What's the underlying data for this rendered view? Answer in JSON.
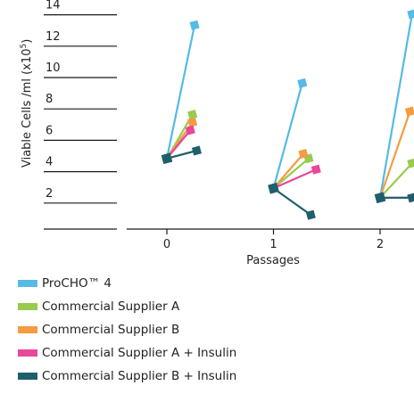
{
  "chart_data": {
    "type": "line",
    "ylabel": "Viable Cells /ml (x10",
    "ylabel_sup": "5",
    "ylabel_end": ")",
    "xlabel": "Passages",
    "y_ticks": [
      "14",
      "12",
      "10",
      "8",
      "6",
      "4",
      "2"
    ],
    "x_ticks": [
      "0",
      "1",
      "2"
    ],
    "ylim": [
      0,
      14
    ],
    "grid": false,
    "legend_position": "bottom",
    "series": [
      {
        "name": "ProCHO™ 4",
        "color": "#57b9e6",
        "segments": [
          {
            "from": [
              0,
              4.5
            ],
            "to": [
              0.26,
              13.0
            ]
          },
          {
            "from": [
              1,
              2.6
            ],
            "to": [
              1.27,
              9.3
            ]
          },
          {
            "from": [
              2,
              2.0
            ],
            "to": [
              2.3,
              13.7
            ]
          }
        ]
      },
      {
        "name": "Commercial Supplier A",
        "color": "#98cb4e",
        "segments": [
          {
            "from": [
              0,
              4.5
            ],
            "to": [
              0.24,
              7.3
            ]
          },
          {
            "from": [
              1,
              2.6
            ],
            "to": [
              1.33,
              4.5
            ]
          },
          {
            "from": [
              2,
              2.0
            ],
            "to": [
              2.3,
              4.2
            ]
          }
        ]
      },
      {
        "name": "Commercial Supplier B",
        "color": "#f39c42",
        "segments": [
          {
            "from": [
              0,
              4.5
            ],
            "to": [
              0.24,
              6.8
            ]
          },
          {
            "from": [
              1,
              2.6
            ],
            "to": [
              1.28,
              4.8
            ]
          },
          {
            "from": [
              2,
              2.0
            ],
            "to": [
              2.28,
              7.5
            ]
          }
        ]
      },
      {
        "name": "Commercial Supplier A + Insulin",
        "color": "#e8479a",
        "segments": [
          {
            "from": [
              0,
              4.5
            ],
            "to": [
              0.22,
              6.3
            ]
          },
          {
            "from": [
              1,
              2.6
            ],
            "to": [
              1.4,
              3.8
            ]
          },
          {
            "from": [
              2,
              2.0
            ],
            "to": [
              2.3,
              2.0
            ]
          }
        ]
      },
      {
        "name": "Commercial Supplier B + Insulin",
        "color": "#1e5f6c",
        "segments": [
          {
            "from": [
              0,
              4.5
            ],
            "to": [
              0.28,
              5.0
            ]
          },
          {
            "from": [
              1,
              2.6
            ],
            "to": [
              1.35,
              0.9
            ]
          },
          {
            "from": [
              2,
              2.0
            ],
            "to": [
              2.3,
              2.0
            ]
          }
        ]
      }
    ]
  }
}
